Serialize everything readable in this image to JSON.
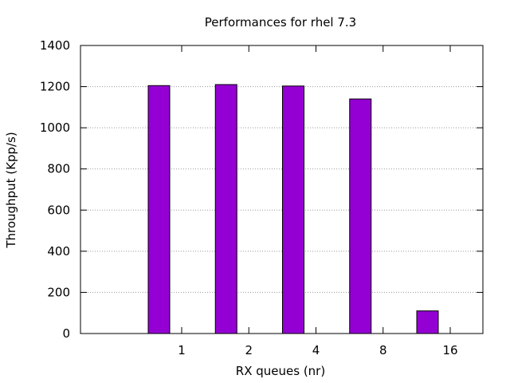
{
  "chart_data": {
    "type": "bar",
    "title": "Performances for rhel 7.3",
    "xlabel": "RX queues (nr)",
    "ylabel": "Throughput (Kpp/s)",
    "categories": [
      "1",
      "2",
      "4",
      "8",
      "16"
    ],
    "values": [
      1205,
      1210,
      1203,
      1140,
      110
    ],
    "ylim": [
      0,
      1400
    ],
    "yticks": [
      0,
      200,
      400,
      600,
      800,
      1000,
      1200,
      1400
    ],
    "grid": "horizontal dotted",
    "bar_color": "#9400d3",
    "legend": "none"
  }
}
